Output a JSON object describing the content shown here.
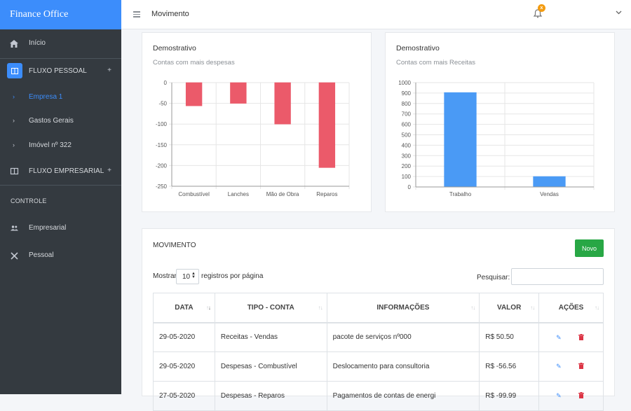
{
  "brand": "Finance Office",
  "sidebar": {
    "items": [
      {
        "label": "Início",
        "icon": "home-icon"
      },
      {
        "label": "FLUXO PESSOAL",
        "icon": "book-icon",
        "plus": "+"
      },
      {
        "label": "Empresa 1"
      },
      {
        "label": "Gastos Gerais"
      },
      {
        "label": "Imóvel nº 322"
      },
      {
        "label": "FLUXO EMPRESARIAL",
        "icon": "book-icon",
        "plus": "+"
      },
      {
        "label": "Empresarial",
        "icon": "users-icon"
      },
      {
        "label": "Pessoal",
        "icon": "tools-icon"
      }
    ],
    "section": "CONTROLE",
    "active_color": "#3c8dfb"
  },
  "header": {
    "title": "Movimento",
    "notification_count": "x"
  },
  "charts": {
    "despesas": {
      "title": "Demostrativo",
      "subtitle": "Contas com mais despesas"
    },
    "receitas": {
      "title": "Demostrativo",
      "subtitle": "Contas com mais Receitas"
    }
  },
  "chart_data": [
    {
      "type": "bar",
      "categories": [
        "Combustível",
        "Lanches",
        "Mão de Obra",
        "Reparos"
      ],
      "values": [
        -56,
        -50,
        -100,
        -205
      ],
      "ylim": [
        -250,
        0
      ],
      "yticks": [
        "0",
        "-50",
        "-100",
        "-150",
        "-200",
        "-250"
      ],
      "color": "#eb5a6a",
      "grid": true
    },
    {
      "type": "bar",
      "categories": [
        "Trabalho",
        "Vendas"
      ],
      "values": [
        905,
        100
      ],
      "ylim": [
        0,
        1000
      ],
      "yticks": [
        "1000",
        "900",
        "800",
        "700",
        "600",
        "500",
        "400",
        "300",
        "200",
        "100",
        "0"
      ],
      "color": "#4a9af5",
      "grid": true
    }
  ],
  "movimento": {
    "title": "MOVIMENTO",
    "new_button": "Novo",
    "show_label": "Mostrar",
    "per_page": "10",
    "per_page_suffix": "registros por página",
    "search_label": "Pesquisar:",
    "columns": [
      "DATA",
      "TIPO - CONTA",
      "INFORMAÇÕES",
      "VALOR",
      "AÇÕES"
    ],
    "rows": [
      {
        "data": "29-05-2020",
        "tipo": "Receitas - Vendas",
        "info": "pacote de serviços nº000",
        "valor": "R$ 50.50"
      },
      {
        "data": "29-05-2020",
        "tipo": "Despesas - Combustível",
        "info": "Deslocamento para consultoria",
        "valor": "R$ -56.56"
      },
      {
        "data": "27-05-2020",
        "tipo": "Despesas - Reparos",
        "info": "Pagamentos de contas de energi",
        "valor": "R$ -99.99"
      }
    ]
  }
}
